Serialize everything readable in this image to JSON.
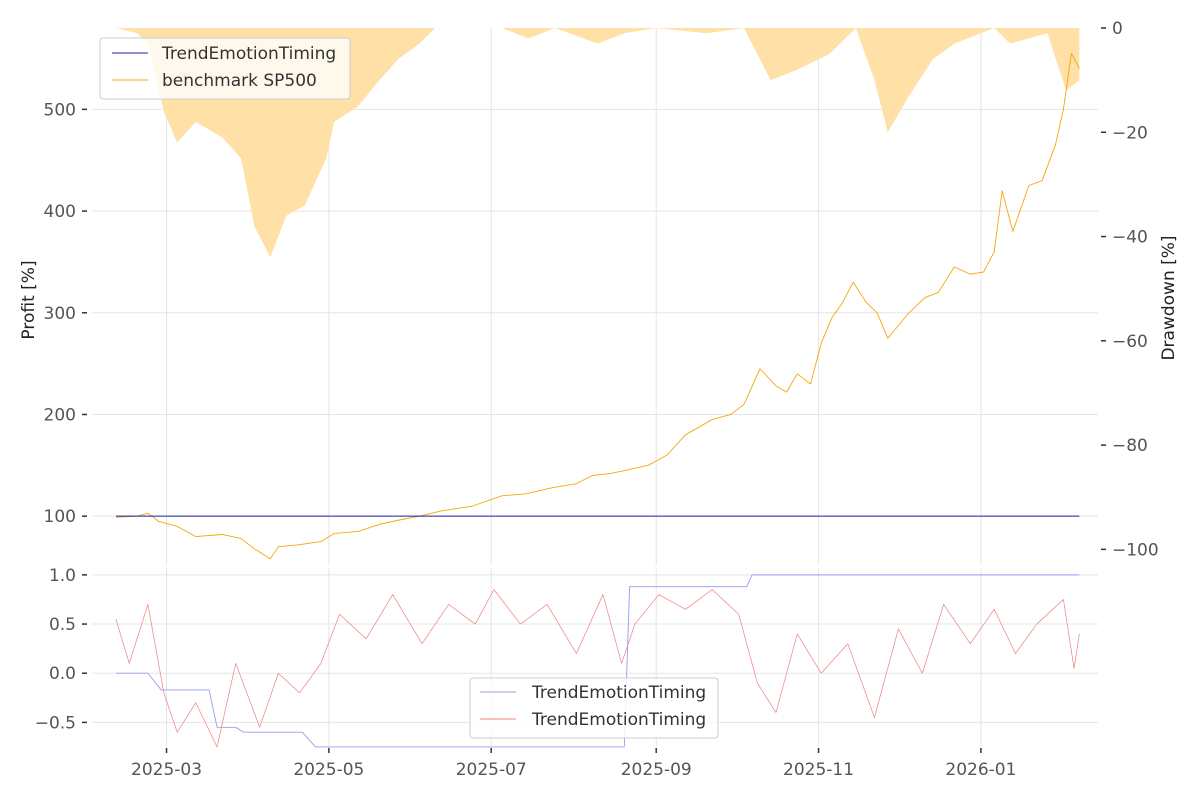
{
  "chart_data": [
    {
      "type": "line",
      "panel": "top",
      "ylabel": "Profit [%]",
      "ylabel_right": "Drawdown [%]",
      "ylim": [
        52,
        580
      ],
      "yticks": [
        100,
        200,
        300,
        400,
        500
      ],
      "ytick_labels": [
        "100",
        "200",
        "300",
        "400",
        "500"
      ],
      "ylim_right": [
        -103,
        0
      ],
      "yticks_right": [
        0,
        -20,
        -40,
        -60,
        -80,
        -100
      ],
      "ytick_labels_right": [
        "0",
        "−20",
        "−40",
        "−60",
        "−80",
        "−100"
      ],
      "grid": true,
      "legend_position": "top-left",
      "series": [
        {
          "name": "TrendEmotionTiming",
          "color": "#1f1fa8",
          "points": [
            [
              "2025-02-10",
              100
            ],
            [
              "2026-02-07",
              100
            ]
          ]
        },
        {
          "name": "benchmark SP500",
          "color": "#f5a70a",
          "points": [
            [
              "2025-02-10",
              99
            ],
            [
              "2025-02-18",
              100
            ],
            [
              "2025-02-22",
              103
            ],
            [
              "2025-02-26",
              95
            ],
            [
              "2025-03-05",
              90
            ],
            [
              "2025-03-12",
              80
            ],
            [
              "2025-03-22",
              82
            ],
            [
              "2025-03-29",
              78
            ],
            [
              "2025-04-03",
              68
            ],
            [
              "2025-04-09",
              58
            ],
            [
              "2025-04-12",
              70
            ],
            [
              "2025-04-20",
              72
            ],
            [
              "2025-04-28",
              75
            ],
            [
              "2025-05-03",
              83
            ],
            [
              "2025-05-12",
              85
            ],
            [
              "2025-05-20",
              92
            ],
            [
              "2025-05-27",
              96
            ],
            [
              "2025-06-04",
              100
            ],
            [
              "2025-06-12",
              105
            ],
            [
              "2025-06-24",
              110
            ],
            [
              "2025-07-05",
              120
            ],
            [
              "2025-07-14",
              122
            ],
            [
              "2025-07-24",
              128
            ],
            [
              "2025-08-02",
              132
            ],
            [
              "2025-08-08",
              140
            ],
            [
              "2025-08-15",
              142
            ],
            [
              "2025-08-22",
              146
            ],
            [
              "2025-08-29",
              150
            ],
            [
              "2025-09-05",
              160
            ],
            [
              "2025-09-12",
              180
            ],
            [
              "2025-09-22",
              195
            ],
            [
              "2025-09-29",
              200
            ],
            [
              "2025-10-04",
              210
            ],
            [
              "2025-10-10",
              245
            ],
            [
              "2025-10-16",
              228
            ],
            [
              "2025-10-20",
              222
            ],
            [
              "2025-10-24",
              240
            ],
            [
              "2025-10-29",
              230
            ],
            [
              "2025-11-02",
              270
            ],
            [
              "2025-11-06",
              295
            ],
            [
              "2025-11-10",
              310
            ],
            [
              "2025-11-14",
              330
            ],
            [
              "2025-11-19",
              310
            ],
            [
              "2025-11-23",
              300
            ],
            [
              "2025-11-27",
              275
            ],
            [
              "2025-12-05",
              300
            ],
            [
              "2025-12-11",
              315
            ],
            [
              "2025-12-16",
              320
            ],
            [
              "2025-12-22",
              345
            ],
            [
              "2025-12-28",
              338
            ],
            [
              "2026-01-02",
              340
            ],
            [
              "2026-01-06",
              360
            ],
            [
              "2026-01-09",
              420
            ],
            [
              "2026-01-13",
              380
            ],
            [
              "2026-01-19",
              425
            ],
            [
              "2026-01-24",
              430
            ],
            [
              "2026-01-29",
              465
            ],
            [
              "2026-02-01",
              500
            ],
            [
              "2026-02-04",
              555
            ],
            [
              "2026-02-07",
              540
            ]
          ]
        }
      ],
      "drawdown_area": {
        "color": "#ffe0a6",
        "points": [
          [
            "2025-02-10",
            0
          ],
          [
            "2025-02-18",
            -1
          ],
          [
            "2025-02-22",
            -3
          ],
          [
            "2025-02-28",
            -16
          ],
          [
            "2025-03-05",
            -22
          ],
          [
            "2025-03-12",
            -18
          ],
          [
            "2025-03-22",
            -21
          ],
          [
            "2025-03-29",
            -25
          ],
          [
            "2025-04-03",
            -38
          ],
          [
            "2025-04-09",
            -44
          ],
          [
            "2025-04-15",
            -36
          ],
          [
            "2025-04-22",
            -34
          ],
          [
            "2025-04-30",
            -25
          ],
          [
            "2025-05-03",
            -18
          ],
          [
            "2025-05-12",
            -15
          ],
          [
            "2025-05-20",
            -10
          ],
          [
            "2025-05-27",
            -6
          ],
          [
            "2025-06-04",
            -3
          ],
          [
            "2025-06-10",
            0
          ],
          [
            "2025-07-05",
            0
          ],
          [
            "2025-07-15",
            -2
          ],
          [
            "2025-07-25",
            0
          ],
          [
            "2025-08-10",
            -3
          ],
          [
            "2025-08-20",
            -1
          ],
          [
            "2025-09-01",
            0
          ],
          [
            "2025-09-20",
            -1
          ],
          [
            "2025-10-04",
            0
          ],
          [
            "2025-10-14",
            -10
          ],
          [
            "2025-10-24",
            -8
          ],
          [
            "2025-11-05",
            -5
          ],
          [
            "2025-11-15",
            0
          ],
          [
            "2025-11-22",
            -10
          ],
          [
            "2025-11-27",
            -20
          ],
          [
            "2025-12-05",
            -13
          ],
          [
            "2025-12-14",
            -6
          ],
          [
            "2025-12-22",
            -3
          ],
          [
            "2026-01-06",
            0
          ],
          [
            "2026-01-12",
            -3
          ],
          [
            "2026-01-19",
            -2
          ],
          [
            "2026-01-26",
            -1
          ],
          [
            "2026-02-02",
            -12
          ],
          [
            "2026-02-07",
            -10
          ]
        ]
      }
    },
    {
      "type": "line",
      "panel": "bottom",
      "ylim": [
        -0.74,
        1.07
      ],
      "yticks": [
        -0.5,
        0,
        0.5,
        1.0
      ],
      "ytick_labels": [
        "−0.5",
        "0.0",
        "0.5",
        "1.0"
      ],
      "x_range": [
        "2025-02-01",
        "2026-02-14"
      ],
      "xticks": [
        "2025-03-01",
        "2025-05-01",
        "2025-07-01",
        "2025-09-01",
        "2025-11-01",
        "2026-01-01"
      ],
      "xtick_labels": [
        "2025-03",
        "2025-05",
        "2025-07",
        "2025-09",
        "2025-11",
        "2026-01"
      ],
      "grid": true,
      "legend_position": "bottom-center",
      "series": [
        {
          "name": "TrendEmotionTiming",
          "color": "#9a9af0",
          "points": [
            [
              "2025-02-10",
              0.0
            ],
            [
              "2025-02-22",
              0.0
            ],
            [
              "2025-02-27",
              -0.17
            ],
            [
              "2025-03-17",
              -0.17
            ],
            [
              "2025-03-20",
              -0.55
            ],
            [
              "2025-03-27",
              -0.55
            ],
            [
              "2025-03-30",
              -0.6
            ],
            [
              "2025-04-21",
              -0.6
            ],
            [
              "2025-04-26",
              -0.75
            ],
            [
              "2025-08-20",
              -0.75
            ],
            [
              "2025-08-22",
              0.88
            ],
            [
              "2025-10-05",
              0.88
            ],
            [
              "2025-10-07",
              1.0
            ],
            [
              "2026-02-07",
              1.0
            ]
          ]
        },
        {
          "name": "TrendEmotionTiming",
          "color": "#f08080",
          "points": [
            [
              "2025-02-10",
              0.55
            ],
            [
              "2025-02-15",
              0.1
            ],
            [
              "2025-02-22",
              0.7
            ],
            [
              "2025-02-28",
              -0.2
            ],
            [
              "2025-03-05",
              -0.6
            ],
            [
              "2025-03-12",
              -0.3
            ],
            [
              "2025-03-20",
              -0.75
            ],
            [
              "2025-03-27",
              0.1
            ],
            [
              "2025-04-05",
              -0.55
            ],
            [
              "2025-04-12",
              0.0
            ],
            [
              "2025-04-20",
              -0.2
            ],
            [
              "2025-04-28",
              0.1
            ],
            [
              "2025-05-05",
              0.6
            ],
            [
              "2025-05-15",
              0.35
            ],
            [
              "2025-05-25",
              0.8
            ],
            [
              "2025-06-05",
              0.3
            ],
            [
              "2025-06-15",
              0.7
            ],
            [
              "2025-06-25",
              0.5
            ],
            [
              "2025-07-02",
              0.85
            ],
            [
              "2025-07-12",
              0.5
            ],
            [
              "2025-07-22",
              0.7
            ],
            [
              "2025-08-02",
              0.2
            ],
            [
              "2025-08-12",
              0.8
            ],
            [
              "2025-08-19",
              0.1
            ],
            [
              "2025-08-24",
              0.5
            ],
            [
              "2025-09-02",
              0.8
            ],
            [
              "2025-09-12",
              0.65
            ],
            [
              "2025-09-22",
              0.85
            ],
            [
              "2025-10-02",
              0.6
            ],
            [
              "2025-10-09",
              -0.1
            ],
            [
              "2025-10-16",
              -0.4
            ],
            [
              "2025-10-24",
              0.4
            ],
            [
              "2025-11-02",
              0.0
            ],
            [
              "2025-11-12",
              0.3
            ],
            [
              "2025-11-22",
              -0.45
            ],
            [
              "2025-12-01",
              0.45
            ],
            [
              "2025-12-10",
              0.0
            ],
            [
              "2025-12-18",
              0.7
            ],
            [
              "2025-12-28",
              0.3
            ],
            [
              "2026-01-06",
              0.65
            ],
            [
              "2026-01-14",
              0.2
            ],
            [
              "2026-01-22",
              0.5
            ],
            [
              "2026-02-01",
              0.75
            ],
            [
              "2026-02-05",
              0.05
            ],
            [
              "2026-02-07",
              0.4
            ]
          ]
        }
      ]
    }
  ]
}
